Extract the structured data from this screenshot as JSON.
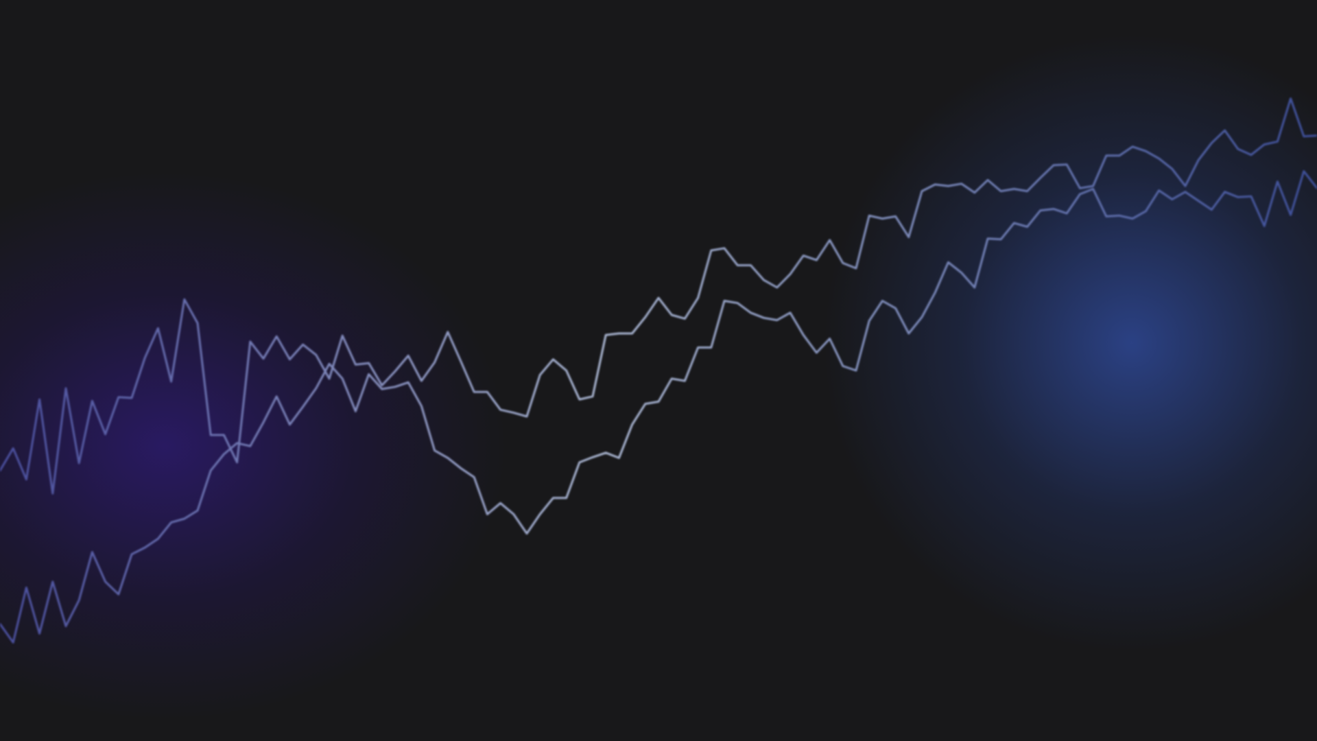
{
  "chart_data": {
    "type": "line",
    "grid": false,
    "legend": "none",
    "title": "",
    "xlabel": "",
    "ylabel": "",
    "xlim": [
      0,
      100
    ],
    "ylim": [
      0,
      100
    ],
    "gradient": {
      "left_color": "#4a4f9e",
      "mid_color": "#aebad6",
      "right_color": "#3e4f9a"
    },
    "series": [
      {
        "color": "#5b6fb3",
        "x": [
          0,
          1,
          2,
          3,
          4,
          5,
          6,
          7,
          8,
          9,
          10,
          11,
          12,
          13,
          14,
          15,
          16,
          17,
          18,
          19,
          20,
          21,
          22,
          23,
          24,
          25,
          26,
          27,
          28,
          29,
          30,
          31,
          32,
          33,
          34,
          35,
          36,
          37,
          38,
          39,
          40,
          41,
          42,
          43,
          44,
          45,
          46,
          47,
          48,
          49,
          50,
          51,
          52,
          53,
          54,
          55,
          56,
          57,
          58,
          59,
          60,
          61,
          62,
          63,
          64,
          65,
          66,
          67,
          68,
          69,
          70,
          71,
          72,
          73,
          74,
          75,
          76,
          77,
          78,
          79,
          80,
          81,
          82,
          83,
          84,
          85,
          86,
          87,
          88,
          89,
          90,
          91,
          92,
          93,
          94,
          95,
          96,
          97,
          98,
          99,
          100
        ],
        "y": [
          36.5,
          39.5,
          35.3,
          46.1,
          33.4,
          47.6,
          37.5,
          45.9,
          41.4,
          46.4,
          46.3,
          51.7,
          55.7,
          48.5,
          59.6,
          56.4,
          41.3,
          41.3,
          37.6,
          53.9,
          51.6,
          54.6,
          51.5,
          53.5,
          52.1,
          48.9,
          54.7,
          50.8,
          51.0,
          48.0,
          49.9,
          52.0,
          48.6,
          51.1,
          55.2,
          51.2,
          47.1,
          47.1,
          44.7,
          44.3,
          43.8,
          49.4,
          51.5,
          50.0,
          46.1,
          46.5,
          54.8,
          55.0,
          55.0,
          57.2,
          59.8,
          57.5,
          57.0,
          59.8,
          66.2,
          66.5,
          64.2,
          64.2,
          62.2,
          61.2,
          63.0,
          65.5,
          64.9,
          67.6,
          64.5,
          63.8,
          70.9,
          70.5,
          70.8,
          68.0,
          74.2,
          75.1,
          74.9,
          75.2,
          74.0,
          75.7,
          74.2,
          74.5,
          74.2,
          76.0,
          77.7,
          77.8,
          74.6,
          74.9,
          79.0,
          79.0,
          80.2,
          79.6,
          78.6,
          77.2,
          74.9,
          78.4,
          80.7,
          82.4,
          79.9,
          79.1,
          80.5,
          80.9,
          86.7,
          81.6,
          81.7
        ]
      },
      {
        "color": "#5b6fb3",
        "x": [
          0,
          1,
          2,
          3,
          4,
          5,
          6,
          7,
          8,
          9,
          10,
          11,
          12,
          13,
          14,
          15,
          16,
          17,
          18,
          19,
          20,
          21,
          22,
          23,
          24,
          25,
          26,
          27,
          28,
          29,
          30,
          31,
          32,
          33,
          34,
          35,
          36,
          37,
          38,
          39,
          40,
          41,
          42,
          43,
          44,
          45,
          46,
          47,
          48,
          49,
          50,
          51,
          52,
          53,
          54,
          55,
          56,
          57,
          58,
          59,
          60,
          61,
          62,
          63,
          64,
          65,
          66,
          67,
          68,
          69,
          70,
          71,
          72,
          73,
          74,
          75,
          76,
          77,
          78,
          79,
          80,
          81,
          82,
          83,
          84,
          85,
          86,
          87,
          88,
          89,
          90,
          91,
          92,
          93,
          94,
          95,
          96,
          97,
          98,
          99,
          100
        ],
        "y": [
          15.8,
          13.3,
          20.7,
          14.5,
          21.5,
          15.5,
          19.0,
          25.5,
          21.5,
          19.8,
          25.2,
          26.1,
          27.3,
          29.5,
          30.0,
          31.1,
          36.5,
          38.7,
          40.2,
          39.8,
          43.0,
          46.5,
          42.7,
          45.1,
          47.6,
          50.9,
          48.9,
          44.5,
          49.5,
          47.5,
          47.8,
          48.4,
          45.2,
          39.2,
          38.2,
          36.8,
          35.6,
          30.6,
          32.1,
          30.6,
          28.0,
          30.6,
          32.8,
          32.8,
          37.6,
          38.3,
          38.9,
          38.2,
          42.7,
          45.5,
          45.8,
          48.9,
          48.6,
          53.1,
          53.1,
          59.4,
          59.1,
          57.8,
          57.1,
          56.8,
          57.8,
          54.8,
          52.4,
          54.3,
          50.6,
          50.0,
          56.7,
          59.4,
          58.4,
          55.0,
          57.2,
          60.5,
          64.6,
          63.2,
          61.2,
          67.8,
          67.7,
          69.9,
          69.4,
          71.6,
          71.8,
          71.2,
          73.8,
          74.5,
          70.8,
          70.9,
          70.5,
          71.5,
          74.3,
          73.1,
          74.1,
          72.9,
          71.7,
          74.1,
          73.4,
          73.5,
          69.5,
          75.5,
          71.0,
          76.9,
          74.6
        ]
      }
    ]
  }
}
